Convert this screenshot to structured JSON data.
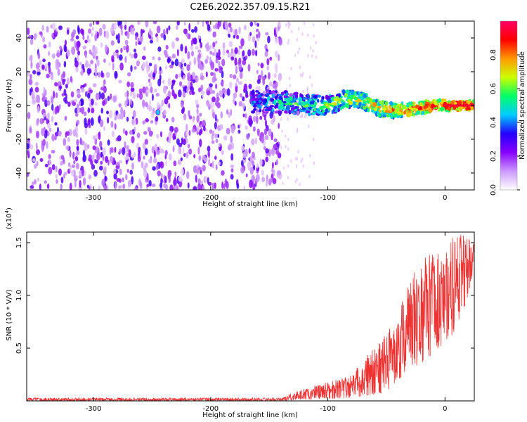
{
  "title": "C2E6.2022.357.09.15.R21",
  "chart_data": [
    {
      "type": "heatmap",
      "name": "spectrogram",
      "xlabel": "Height of straight line (km)",
      "ylabel": "Frequency (Hz)",
      "xlim": [
        -357,
        25
      ],
      "ylim": [
        -50,
        50
      ],
      "x_ticks": [
        -300,
        -200,
        -100,
        0
      ],
      "y_ticks": [
        -40,
        -20,
        0,
        20,
        40
      ],
      "colorbar": {
        "label": "Normalized spectral amplitude",
        "range": [
          0,
          1
        ],
        "ticks": [
          0.0,
          0.2,
          0.4,
          0.6,
          0.8
        ],
        "tick_labels": [
          "0.0",
          "0.2",
          "0.4",
          "0.6",
          "0.8"
        ],
        "colors": [
          "#ffffff",
          "#cc99ff",
          "#8800ff",
          "#2200ff",
          "#00ccff",
          "#00ff66",
          "#ccff00",
          "#ff9900",
          "#ff0000",
          "#ff0066"
        ]
      },
      "features": {
        "noise_region_x": [
          -357,
          -140
        ],
        "signal_region_x": [
          -165,
          25
        ],
        "signal_center_hz": [
          {
            "x": -165,
            "f": 2
          },
          {
            "x": -140,
            "f": 2
          },
          {
            "x": -125,
            "f": 1
          },
          {
            "x": -110,
            "f": 0
          },
          {
            "x": -100,
            "f": 0
          },
          {
            "x": -85,
            "f": 4
          },
          {
            "x": -70,
            "f": 3
          },
          {
            "x": -55,
            "f": -2
          },
          {
            "x": -40,
            "f": -3
          },
          {
            "x": -25,
            "f": -2
          },
          {
            "x": -10,
            "f": 0
          },
          {
            "x": 5,
            "f": 0
          },
          {
            "x": 25,
            "f": 0
          }
        ],
        "isolated_blob": {
          "x": -245,
          "f": -4
        }
      }
    },
    {
      "type": "line",
      "name": "snr",
      "xlabel": "Height of straight line (km)",
      "ylabel": "SNR (10 * V/V)",
      "y_multiplier": "(x10",
      "y_multiplier_exp": "4",
      "xlim": [
        -357,
        25
      ],
      "ylim": [
        0,
        1.6
      ],
      "x_ticks": [
        -300,
        -200,
        -100,
        0
      ],
      "y_ticks": [
        0.5,
        1.0,
        1.5
      ],
      "y_tick_labels": [
        "0.5",
        "1.0",
        "1.5"
      ],
      "color": "#ee3333",
      "series": [
        {
          "name": "SNR",
          "envelope": [
            {
              "x": -357,
              "low": 0.0,
              "high": 0.03
            },
            {
              "x": -140,
              "low": 0.0,
              "high": 0.03
            },
            {
              "x": -120,
              "low": 0.01,
              "high": 0.12
            },
            {
              "x": -100,
              "low": 0.02,
              "high": 0.18
            },
            {
              "x": -80,
              "low": 0.03,
              "high": 0.25
            },
            {
              "x": -65,
              "low": 0.05,
              "high": 0.45
            },
            {
              "x": -50,
              "low": 0.08,
              "high": 0.65
            },
            {
              "x": -40,
              "low": 0.2,
              "high": 0.85
            },
            {
              "x": -30,
              "low": 0.3,
              "high": 1.15
            },
            {
              "x": -20,
              "low": 0.35,
              "high": 1.35
            },
            {
              "x": -10,
              "low": 0.45,
              "high": 1.4
            },
            {
              "x": 0,
              "low": 0.55,
              "high": 1.45
            },
            {
              "x": 10,
              "low": 0.65,
              "high": 1.6
            },
            {
              "x": 25,
              "low": 1.2,
              "high": 1.55
            }
          ]
        }
      ]
    }
  ]
}
